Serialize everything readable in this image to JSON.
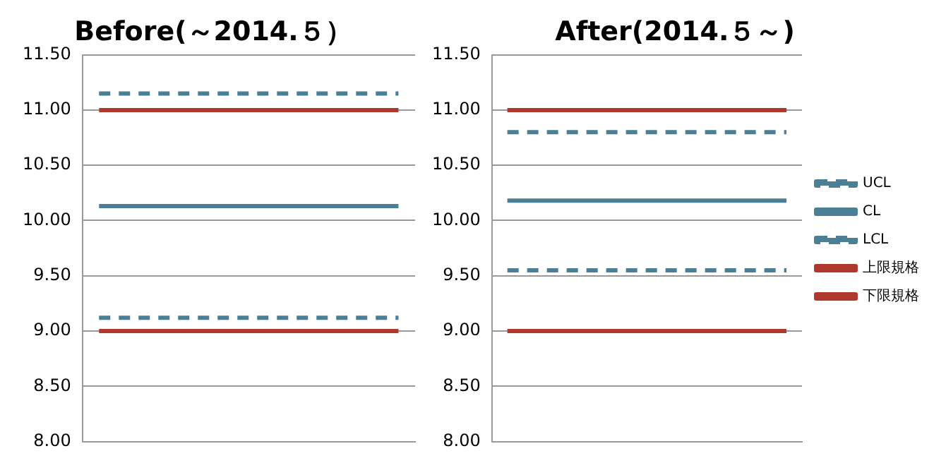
{
  "chart_data": [
    {
      "type": "line",
      "title": "Before(～2014.５）",
      "categories": [
        null,
        null,
        null,
        null,
        null,
        null,
        null,
        null,
        null,
        null
      ],
      "ylim": [
        8.0,
        11.5
      ],
      "yticks": [
        {
          "value": 8,
          "label": "8.00"
        },
        {
          "value": 8.5,
          "label": "8.50"
        },
        {
          "value": 9,
          "label": "9.00"
        },
        {
          "value": 9.5,
          "label": "9.50"
        },
        {
          "value": 10,
          "label": "10.00"
        },
        {
          "value": 10.5,
          "label": "10.50"
        },
        {
          "value": 11,
          "label": "11.00"
        },
        {
          "value": 11.5,
          "label": "11.50"
        }
      ],
      "grid": "y",
      "tick_labels": "y",
      "legend": false,
      "marker": "none",
      "series": [
        {
          "color": "#4a7f96",
          "line_style": "dashed",
          "values": [
            11.15,
            11.15,
            11.15,
            11.15,
            11.15,
            11.15,
            11.15,
            11.15,
            11.15,
            11.15
          ]
        },
        {
          "color": "#4a7f96",
          "line_style": "solid",
          "values": [
            10.13,
            10.13,
            10.13,
            10.13,
            10.13,
            10.13,
            10.13,
            10.13,
            10.13,
            10.13
          ]
        },
        {
          "color": "#4a7f96",
          "line_style": "dashed",
          "values": [
            9.12,
            9.12,
            9.12,
            9.12,
            9.12,
            9.12,
            9.12,
            9.12,
            9.12,
            9.12
          ]
        },
        {
          "color": "#b0392e",
          "line_style": "solid",
          "values": [
            11.0,
            11.0,
            11.0,
            11.0,
            11.0,
            11.0,
            11.0,
            11.0,
            11.0,
            11.0
          ]
        },
        {
          "color": "#b0392e",
          "line_style": "solid",
          "values": [
            9.0,
            9.0,
            9.0,
            9.0,
            9.0,
            9.0,
            9.0,
            9.0,
            9.0,
            9.0
          ]
        }
      ]
    },
    {
      "type": "line",
      "title": "After(2014.５～)",
      "categories": [
        null,
        null,
        null,
        null,
        null,
        null,
        null,
        null,
        null,
        null
      ],
      "ylim": [
        8.0,
        11.5
      ],
      "yticks": [
        {
          "value": 8,
          "label": "8.00"
        },
        {
          "value": 8.5,
          "label": "8.50"
        },
        {
          "value": 9,
          "label": "9.00"
        },
        {
          "value": 9.5,
          "label": "9.50"
        },
        {
          "value": 10,
          "label": "10.00"
        },
        {
          "value": 10.5,
          "label": "10.50"
        },
        {
          "value": 11,
          "label": "11.00"
        },
        {
          "value": 11.5,
          "label": "11.50"
        }
      ],
      "grid": "y",
      "tick_labels": "y",
      "legend": "right",
      "marker": "none",
      "series": [
        {
          "name": "UCL",
          "color": "#4a7f96",
          "line_style": "dashed",
          "values": [
            10.8,
            10.8,
            10.8,
            10.8,
            10.8,
            10.8,
            10.8,
            10.8,
            10.8,
            10.8
          ]
        },
        {
          "name": "CL",
          "color": "#4a7f96",
          "line_style": "solid",
          "values": [
            10.18,
            10.18,
            10.18,
            10.18,
            10.18,
            10.18,
            10.18,
            10.18,
            10.18,
            10.18
          ]
        },
        {
          "name": "LCL",
          "color": "#4a7f96",
          "line_style": "dashed",
          "values": [
            9.55,
            9.55,
            9.55,
            9.55,
            9.55,
            9.55,
            9.55,
            9.55,
            9.55,
            9.55
          ]
        },
        {
          "name": "上限規格",
          "color": "#b0392e",
          "line_style": "solid",
          "values": [
            11.0,
            11.0,
            11.0,
            11.0,
            11.0,
            11.0,
            11.0,
            11.0,
            11.0,
            11.0
          ]
        },
        {
          "name": "下限規格",
          "color": "#b0392e",
          "line_style": "solid",
          "values": [
            9.0,
            9.0,
            9.0,
            9.0,
            9.0,
            9.0,
            9.0,
            9.0,
            9.0,
            9.0
          ]
        }
      ]
    }
  ]
}
